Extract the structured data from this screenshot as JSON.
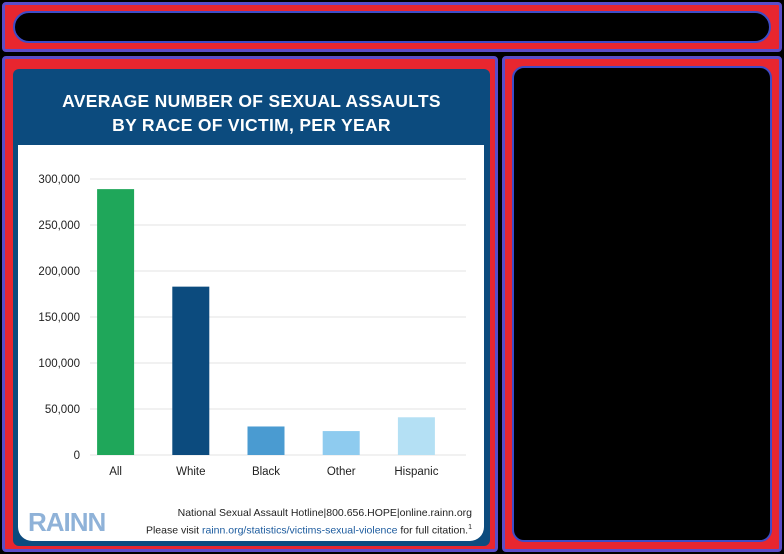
{
  "chart_data": {
    "type": "bar",
    "title_line1": "AVERAGE NUMBER OF SEXUAL ASSAULTS",
    "title_line2": "BY RACE OF VICTIM, PER YEAR",
    "categories": [
      "All",
      "White",
      "Black",
      "Other",
      "Hispanic"
    ],
    "values": [
      289000,
      183000,
      31000,
      26000,
      41000
    ],
    "bar_colors": [
      "#1fa75a",
      "#0c4b7e",
      "#4a9bd1",
      "#8ecbef",
      "#b4e0f4"
    ],
    "y_ticks": [
      "0",
      "50,000",
      "100,000",
      "150,000",
      "200,000",
      "250,000",
      "300,000"
    ],
    "ylim": [
      0,
      300000
    ],
    "grid": true
  },
  "footer": {
    "hotline": "National Sexual Assault Hotline|800.656.HOPE|online.rainn.org",
    "citation_prefix": "Please visit ",
    "citation_link": "rainn.org/statistics/victims-sexual-violence",
    "citation_suffix": " for full citation.",
    "citation_sup": "1",
    "logo": "RAINN"
  },
  "colors": {
    "frame": "#e8262f",
    "title_bg": "#0c4b7e",
    "link": "#1c5b9e"
  }
}
